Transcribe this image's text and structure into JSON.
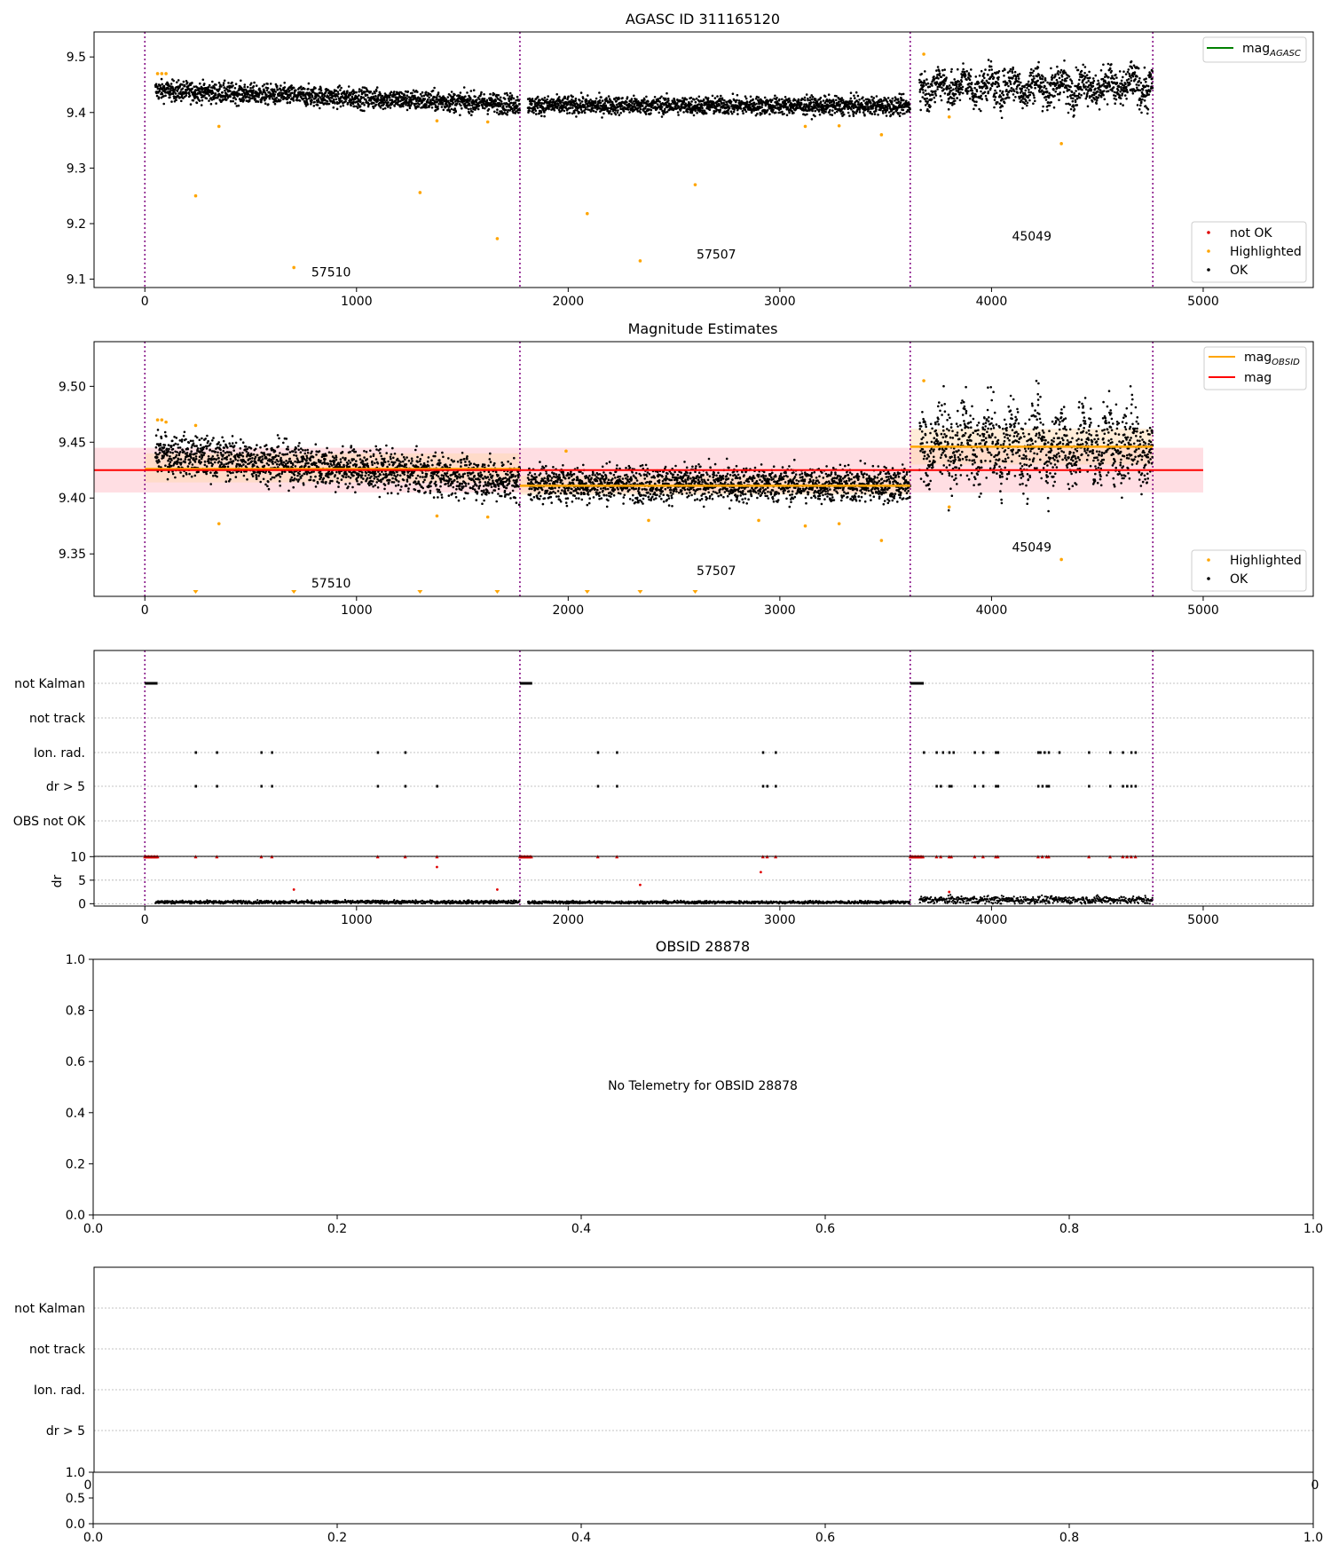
{
  "colors": {
    "ok": "#000000",
    "not_ok": "#e00000",
    "highlighted": "#ffa500",
    "mag_agasc": "#008000",
    "mag_obsid": "#ffa500",
    "mag": "#ff0000",
    "mag_band": "#ffb6c1",
    "obsid_band": "#ffd6a8",
    "obs_boundary": "#800080",
    "grid": "#b0b0b0"
  },
  "chart_data": [
    {
      "id": "agasc",
      "type": "scatter",
      "title": "AGASC ID 311165120",
      "xlim": [
        -240,
        5520
      ],
      "ylim": [
        9.085,
        9.545
      ],
      "xticks": [
        0,
        1000,
        2000,
        3000,
        4000,
        5000
      ],
      "yticks": [
        9.1,
        9.2,
        9.3,
        9.4,
        9.5
      ],
      "ytick_labels": [
        "9.1",
        "9.2",
        "9.3",
        "9.4",
        "9.5"
      ],
      "obs_boundaries": [
        0,
        1772,
        3616,
        4762
      ],
      "obsid_labels": [
        {
          "text": "57510",
          "x": 880,
          "y": 9.105
        },
        {
          "text": "57507",
          "x": 2700,
          "y": 9.137
        },
        {
          "text": "45049",
          "x": 4190,
          "y": 9.17
        }
      ],
      "segments": [
        {
          "x0": 50,
          "x1": 1772,
          "mean_start": 9.44,
          "mean_end": 9.415,
          "scatter": 0.009
        },
        {
          "x0": 1810,
          "x1": 3616,
          "mean_start": 9.413,
          "mean_end": 9.412,
          "scatter": 0.008
        },
        {
          "x0": 3660,
          "x1": 4762,
          "mean_start": 9.447,
          "mean_end": 9.447,
          "scatter": 0.016
        }
      ],
      "highlighted_points": [
        [
          60,
          9.47
        ],
        [
          80,
          9.47
        ],
        [
          100,
          9.47
        ],
        [
          240,
          9.25
        ],
        [
          350,
          9.375
        ],
        [
          704,
          9.121
        ],
        [
          1300,
          9.256
        ],
        [
          1380,
          9.385
        ],
        [
          1620,
          9.383
        ],
        [
          1665,
          9.173
        ],
        [
          2090,
          9.218
        ],
        [
          2340,
          9.133
        ],
        [
          2600,
          9.27
        ],
        [
          3120,
          9.375
        ],
        [
          3280,
          9.376
        ],
        [
          3480,
          9.36
        ],
        [
          3680,
          9.505
        ],
        [
          3800,
          9.392
        ],
        [
          4330,
          9.344
        ]
      ],
      "legend": {
        "position": "upper right",
        "entries": [
          {
            "label": "mag",
            "sub": "AGASC"
          }
        ]
      },
      "legend2": {
        "position": "lower right",
        "entries": [
          "not OK",
          "Highlighted",
          "OK"
        ]
      }
    },
    {
      "id": "estimates",
      "type": "scatter",
      "title": "Magnitude Estimates",
      "xlim": [
        -240,
        5520
      ],
      "ylim": [
        9.312,
        9.54
      ],
      "xticks": [
        0,
        1000,
        2000,
        3000,
        4000,
        5000
      ],
      "yticks": [
        9.35,
        9.4,
        9.45,
        9.5
      ],
      "ytick_labels": [
        "9.35",
        "9.40",
        "9.45",
        "9.50"
      ],
      "obs_boundaries": [
        0,
        1772,
        3616,
        4762
      ],
      "obsid_labels": [
        {
          "text": "57510",
          "x": 880,
          "y": 9.32
        },
        {
          "text": "57507",
          "x": 2700,
          "y": 9.331
        },
        {
          "text": "45049",
          "x": 4190,
          "y": 9.352
        }
      ],
      "mag": 9.425,
      "mag_band": [
        9.405,
        9.445
      ],
      "mag_range_x": [
        -240,
        5000
      ],
      "obsid_mags": [
        {
          "x0": 0,
          "x1": 1772,
          "mag": 9.426,
          "band": [
            9.414,
            9.44
          ]
        },
        {
          "x0": 1772,
          "x1": 3616,
          "mag": 9.411,
          "band": [
            9.403,
            9.42
          ]
        },
        {
          "x0": 3616,
          "x1": 4762,
          "mag": 9.446,
          "band": [
            9.43,
            9.462
          ]
        }
      ],
      "segments": [
        {
          "x0": 50,
          "x1": 1772,
          "mean_start": 9.44,
          "mean_end": 9.415,
          "scatter": 0.009
        },
        {
          "x0": 1810,
          "x1": 3616,
          "mean_start": 9.413,
          "mean_end": 9.412,
          "scatter": 0.008
        },
        {
          "x0": 3660,
          "x1": 4762,
          "mean_start": 9.447,
          "mean_end": 9.447,
          "scatter": 0.016
        }
      ],
      "highlighted_points": [
        [
          60,
          9.47
        ],
        [
          80,
          9.47
        ],
        [
          100,
          9.468
        ],
        [
          240,
          9.465
        ],
        [
          350,
          9.377
        ],
        [
          1380,
          9.384
        ],
        [
          1620,
          9.383
        ],
        [
          1990,
          9.442
        ],
        [
          2380,
          9.38
        ],
        [
          2900,
          9.38
        ],
        [
          3120,
          9.375
        ],
        [
          3280,
          9.377
        ],
        [
          3480,
          9.362
        ],
        [
          3680,
          9.505
        ],
        [
          3800,
          9.392
        ],
        [
          4330,
          9.345
        ]
      ],
      "clipped_points": [
        240,
        704,
        1300,
        1665,
        2090,
        2340,
        2600
      ],
      "legend": {
        "position": "upper right",
        "entries": [
          {
            "label": "mag",
            "sub": "OBSID"
          },
          {
            "label": "mag",
            "sub": ""
          }
        ]
      },
      "legend2": {
        "position": "lower right",
        "entries": [
          "Highlighted",
          "OK"
        ]
      }
    },
    {
      "id": "flags",
      "type": "scatter",
      "xlim": [
        -240,
        5520
      ],
      "xticks": [
        0,
        1000,
        2000,
        3000,
        4000,
        5000
      ],
      "obs_boundaries": [
        0,
        1772,
        3616,
        4762
      ],
      "flag_rows": [
        "not Kalman",
        "not track",
        "Ion. rad.",
        "dr > 5",
        "OBS not OK"
      ],
      "not_kalman": [
        [
          0,
          60
        ],
        [
          1772,
          1830
        ],
        [
          3616,
          3680
        ]
      ],
      "ion_rad_x": [
        240,
        340,
        550,
        600,
        1100,
        1230,
        2140,
        2230,
        2920,
        2980,
        3680,
        3740,
        3770,
        3800,
        3820,
        3920,
        3960,
        4020,
        4030,
        4220,
        4230,
        4250,
        4270,
        4320,
        4460,
        4560,
        4620,
        4660,
        4680
      ],
      "dr_gt5_x": [
        240,
        340,
        550,
        600,
        1100,
        1230,
        1380,
        2140,
        2230,
        2920,
        2940,
        2980,
        3740,
        3760,
        3800,
        3810,
        3920,
        3960,
        4020,
        4030,
        4220,
        4240,
        4260,
        4270,
        4460,
        4560,
        4620,
        4640,
        4660,
        4680
      ],
      "dr": {
        "ylabel": "dr",
        "ylim": [
          -0.5,
          11
        ],
        "yticks": [
          0,
          5,
          10
        ],
        "ytick_labels": [
          "0",
          "5",
          "10"
        ],
        "outliers": [
          [
            704,
            3.0
          ],
          [
            1380,
            7.8
          ],
          [
            1665,
            3.0
          ],
          [
            2340,
            4.0
          ],
          [
            2910,
            6.7
          ],
          [
            3800,
            2.5
          ]
        ]
      }
    },
    {
      "id": "obsid_panel",
      "type": "scatter",
      "title": "OBSID 28878",
      "message": "No Telemetry for OBSID 28878",
      "xlim": [
        0,
        1
      ],
      "ylim": [
        0,
        1
      ],
      "xticks": [
        0.0,
        0.2,
        0.4,
        0.6,
        0.8,
        1.0
      ],
      "xtick_labels": [
        "0.0",
        "0.2",
        "0.4",
        "0.6",
        "0.8",
        "1.0"
      ],
      "yticks": [
        0.0,
        0.2,
        0.4,
        0.6,
        0.8,
        1.0
      ],
      "ytick_labels": [
        "0.0",
        "0.2",
        "0.4",
        "0.6",
        "0.8",
        "1.0"
      ]
    },
    {
      "id": "obsid_flags",
      "type": "scatter",
      "flag_rows": [
        "not Kalman",
        "not track",
        "Ion. rad.",
        "dr > 5"
      ],
      "overlap_labels": {
        "left": "0",
        "right": "0"
      },
      "dr": {
        "ylim": [
          0,
          1
        ],
        "yticks": [
          0.0,
          0.5,
          1.0
        ],
        "ytick_labels": [
          "0.0",
          "0.5",
          "1.0"
        ],
        "xticks": [
          0.0,
          0.2,
          0.4,
          0.6,
          0.8,
          1.0
        ],
        "xtick_labels": [
          "0.0",
          "0.2",
          "0.4",
          "0.6",
          "0.8",
          "1.0"
        ]
      }
    }
  ]
}
